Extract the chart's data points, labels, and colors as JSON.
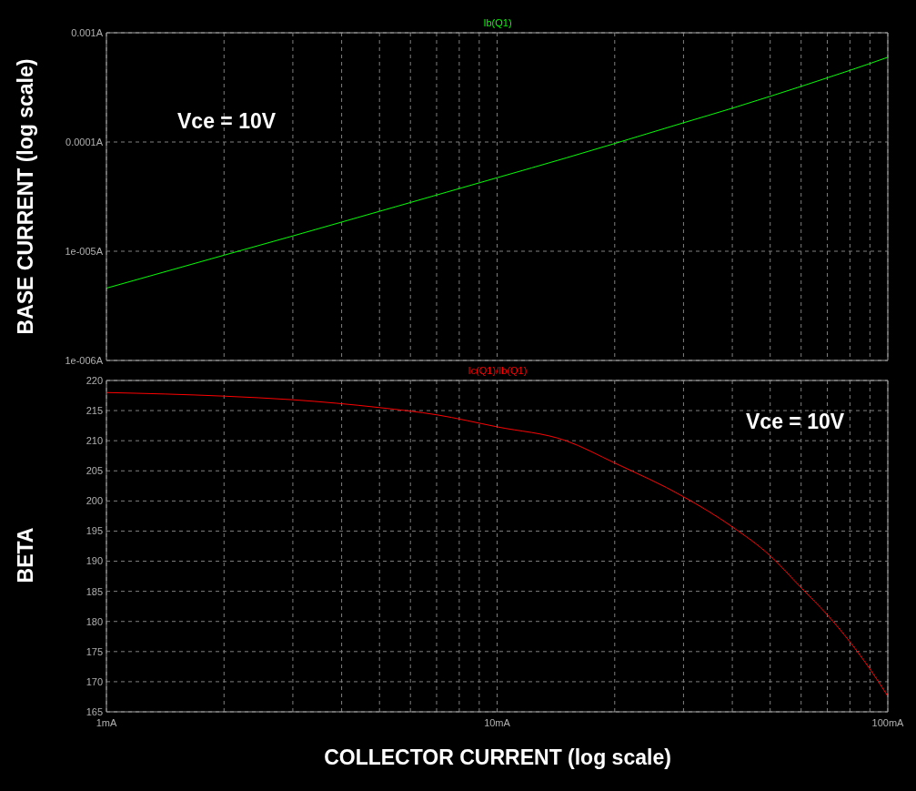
{
  "chart_data": [
    {
      "type": "line",
      "ylabel": "BASE CURRENT  (log scale)",
      "annotations": [
        "Vce = 10V"
      ],
      "log": "xy",
      "grid": true,
      "legend": "top",
      "tick_labels": "y",
      "marker": "none",
      "line_style": "solid",
      "x": [
        1,
        2,
        3,
        5,
        7,
        10,
        15,
        20,
        30,
        40,
        50,
        60,
        70,
        80,
        90,
        100
      ],
      "series": [
        {
          "name": "Ib(Q1)",
          "color": "#00ff00",
          "values": [
            4.59e-06,
            9.2e-06,
            1.38e-05,
            2.32e-05,
            3.27e-05,
            4.71e-05,
            7.14e-05,
            9.69e-05,
            0.00015,
            0.000204,
            0.000262,
            0.000323,
            0.000387,
            0.000453,
            0.000523,
            0.000597
          ]
        }
      ],
      "xlim": [
        1,
        100
      ],
      "xticks": [
        {
          "value": 1,
          "label": null
        },
        {
          "value": 2,
          "label": null
        },
        {
          "value": 3,
          "label": null
        },
        {
          "value": 4,
          "label": null
        },
        {
          "value": 5,
          "label": null
        },
        {
          "value": 6,
          "label": null
        },
        {
          "value": 7,
          "label": null
        },
        {
          "value": 8,
          "label": null
        },
        {
          "value": 9,
          "label": null
        },
        {
          "value": 10,
          "label": null
        },
        {
          "value": 20,
          "label": null
        },
        {
          "value": 30,
          "label": null
        },
        {
          "value": 40,
          "label": null
        },
        {
          "value": 50,
          "label": null
        },
        {
          "value": 60,
          "label": null
        },
        {
          "value": 70,
          "label": null
        },
        {
          "value": 80,
          "label": null
        },
        {
          "value": 90,
          "label": null
        },
        {
          "value": 100,
          "label": null
        }
      ],
      "ylim": [
        1e-06,
        0.001
      ],
      "yticks": [
        {
          "value": 1e-06,
          "label": "1e-006A"
        },
        {
          "value": 1e-05,
          "label": "1e-005A"
        },
        {
          "value": 0.0001,
          "label": "0.0001A"
        },
        {
          "value": 0.001,
          "label": "0.001A"
        }
      ]
    },
    {
      "type": "line",
      "xlabel": "COLLECTOR CURRENT (log scale)",
      "ylabel": "BETA",
      "annotations": [
        "Vce = 10V"
      ],
      "log": "x",
      "grid": true,
      "legend": "top",
      "marker": "none",
      "line_style": "solid",
      "x": [
        1,
        2,
        3,
        5,
        7,
        10,
        15,
        20,
        30,
        40,
        50,
        60,
        70,
        80,
        90,
        100
      ],
      "series": [
        {
          "name": "Ic(Q1)/Ib(Q1)",
          "color": "#ff0000",
          "values": [
            218.0,
            217.4,
            216.8,
            215.5,
            214.3,
            212.3,
            210.0,
            206.3,
            200.7,
            195.7,
            190.9,
            185.6,
            181.1,
            176.6,
            172.1,
            167.6
          ]
        }
      ],
      "xlim": [
        1,
        100
      ],
      "xticks": [
        {
          "value": 1,
          "label": "1mA"
        },
        {
          "value": 2,
          "label": null
        },
        {
          "value": 3,
          "label": null
        },
        {
          "value": 4,
          "label": null
        },
        {
          "value": 5,
          "label": null
        },
        {
          "value": 6,
          "label": null
        },
        {
          "value": 7,
          "label": null
        },
        {
          "value": 8,
          "label": null
        },
        {
          "value": 9,
          "label": null
        },
        {
          "value": 10,
          "label": "10mA"
        },
        {
          "value": 20,
          "label": null
        },
        {
          "value": 30,
          "label": null
        },
        {
          "value": 40,
          "label": null
        },
        {
          "value": 50,
          "label": null
        },
        {
          "value": 60,
          "label": null
        },
        {
          "value": 70,
          "label": null
        },
        {
          "value": 80,
          "label": null
        },
        {
          "value": 90,
          "label": null
        },
        {
          "value": 100,
          "label": "100mA"
        }
      ],
      "ylim": [
        165,
        220
      ],
      "yticks": [
        165,
        170,
        175,
        180,
        185,
        190,
        195,
        200,
        205,
        210,
        215,
        220
      ]
    }
  ]
}
